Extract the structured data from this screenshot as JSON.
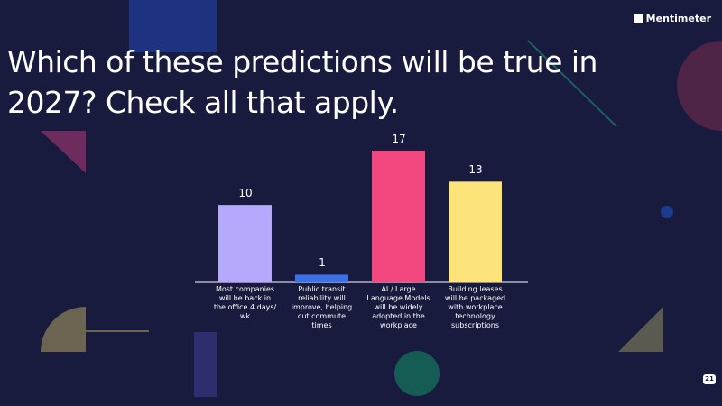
{
  "brand": "Mentimeter",
  "participants": 21,
  "chart_data": {
    "type": "bar",
    "title": "Which of these predictions will be true in 2027? Check all that apply.",
    "categories": [
      "Most companies will be back in the office 4 days/ wk",
      "Public transit reliability will improve, helping cut commute times",
      "AI / Large Language Models will be widely adopted in the workplace",
      "Building leases will be packaged with workplace technology subscriptions"
    ],
    "values": [
      10,
      1,
      17,
      13
    ],
    "colors": [
      "#b6a9fb",
      "#3d6fe6",
      "#f2487f",
      "#fce37a"
    ]
  }
}
